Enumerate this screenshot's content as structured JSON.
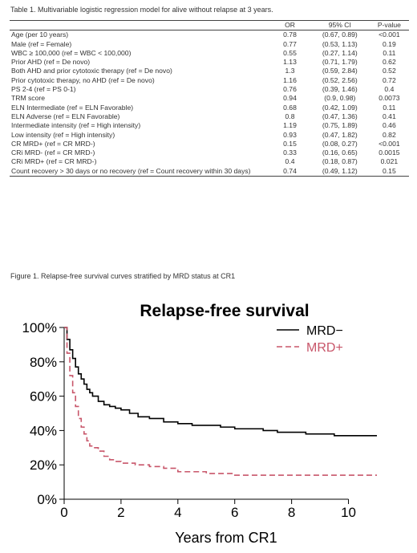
{
  "table": {
    "caption": "Table 1. Multivariable logistic regression model for alive without relapse at 3 years.",
    "headers": [
      "",
      "OR",
      "95% CI",
      "P-value"
    ],
    "rows": [
      [
        "Age (per 10 years)",
        "0.78",
        "(0.67, 0.89)",
        "<0.001"
      ],
      [
        "Male (ref = Female)",
        "0.77",
        "(0.53, 1.13)",
        "0.19"
      ],
      [
        "WBC ≥ 100,000 (ref = WBC < 100,000)",
        "0.55",
        "(0.27, 1.14)",
        "0.11"
      ],
      [
        "Prior AHD (ref = De novo)",
        "1.13",
        "(0.71, 1.79)",
        "0.62"
      ],
      [
        "Both AHD and prior cytotoxic therapy (ref = De novo)",
        "1.3",
        "(0.59, 2.84)",
        "0.52"
      ],
      [
        "Prior cytotoxic therapy, no AHD (ref = De novo)",
        "1.16",
        "(0.52, 2.56)",
        "0.72"
      ],
      [
        "PS 2-4 (ref = PS 0-1)",
        "0.76",
        "(0.39, 1.46)",
        "0.4"
      ],
      [
        "TRM score",
        "0.94",
        "(0.9, 0.98)",
        "0.0073"
      ],
      [
        "ELN Intermediate (ref = ELN Favorable)",
        "0.68",
        "(0.42, 1.09)",
        "0.11"
      ],
      [
        "ELN Adverse (ref = ELN Favorable)",
        "0.8",
        "(0.47, 1.36)",
        "0.41"
      ],
      [
        "Intermediate intensity (ref = High intensity)",
        "1.19",
        "(0.75, 1.89)",
        "0.46"
      ],
      [
        "Low intensity (ref = High intensity)",
        "0.93",
        "(0.47, 1.82)",
        "0.82"
      ],
      [
        "CR MRD+ (ref = CR MRD-)",
        "0.15",
        "(0.08, 0.27)",
        "<0.001"
      ],
      [
        "CRi MRD- (ref = CR MRD-)",
        "0.33",
        "(0.16, 0.65)",
        "0.0015"
      ],
      [
        "CRi MRD+ (ref = CR MRD-)",
        "0.4",
        "(0.18, 0.87)",
        "0.021"
      ],
      [
        "Count recovery > 30 days or no recovery (ref = Count recovery within 30 days)",
        "0.74",
        "(0.49, 1.12)",
        "0.15"
      ]
    ]
  },
  "figure": {
    "caption": "Figure 1. Relapse-free survival curves stratified by MRD status at CR1"
  },
  "chart_data": {
    "type": "line",
    "title": "Relapse-free survival",
    "xlabel": "Years from CR1",
    "ylabel": "",
    "xlim": [
      0,
      11
    ],
    "ylim": [
      0,
      100
    ],
    "xticks": [
      0,
      2,
      4,
      6,
      8,
      10
    ],
    "yticks": [
      0,
      20,
      40,
      60,
      80,
      100
    ],
    "xtick_labels": [
      "0",
      "2",
      "4",
      "6",
      "8",
      "10"
    ],
    "ytick_labels": [
      "0%",
      "20%",
      "40%",
      "60%",
      "80%",
      "100%"
    ],
    "legend_position": "top-right",
    "step": true,
    "series": [
      {
        "name": "MRD−",
        "color": "#000000",
        "dash": "solid",
        "x": [
          0,
          0.1,
          0.2,
          0.3,
          0.4,
          0.5,
          0.6,
          0.7,
          0.8,
          0.9,
          1.0,
          1.2,
          1.4,
          1.6,
          1.8,
          2.0,
          2.3,
          2.6,
          3.0,
          3.5,
          4.0,
          4.5,
          5.0,
          5.5,
          6.0,
          6.5,
          7.0,
          7.5,
          8.0,
          8.5,
          9.0,
          9.5,
          10.0,
          10.5,
          11.0
        ],
        "y": [
          100,
          93,
          87,
          82,
          77,
          73,
          70,
          67,
          64,
          62,
          60,
          57,
          55,
          54,
          53,
          52,
          50,
          48,
          47,
          45,
          44,
          43,
          43,
          42,
          41,
          41,
          40,
          39,
          39,
          38,
          38,
          37,
          37,
          37,
          37
        ]
      },
      {
        "name": "MRD+",
        "color": "#c8566a",
        "dash": "dashed",
        "x": [
          0,
          0.1,
          0.2,
          0.3,
          0.4,
          0.5,
          0.6,
          0.7,
          0.8,
          0.9,
          1.0,
          1.2,
          1.4,
          1.6,
          1.8,
          2.0,
          2.5,
          3.0,
          3.5,
          4.0,
          5.0,
          6.0,
          7.0,
          8.0,
          9.0,
          10.0,
          11.0
        ],
        "y": [
          100,
          85,
          72,
          62,
          54,
          47,
          42,
          38,
          34,
          31,
          30,
          28,
          25,
          23,
          22,
          21,
          20,
          19,
          18,
          16,
          15,
          14,
          14,
          14,
          14,
          14,
          14
        ]
      }
    ]
  }
}
